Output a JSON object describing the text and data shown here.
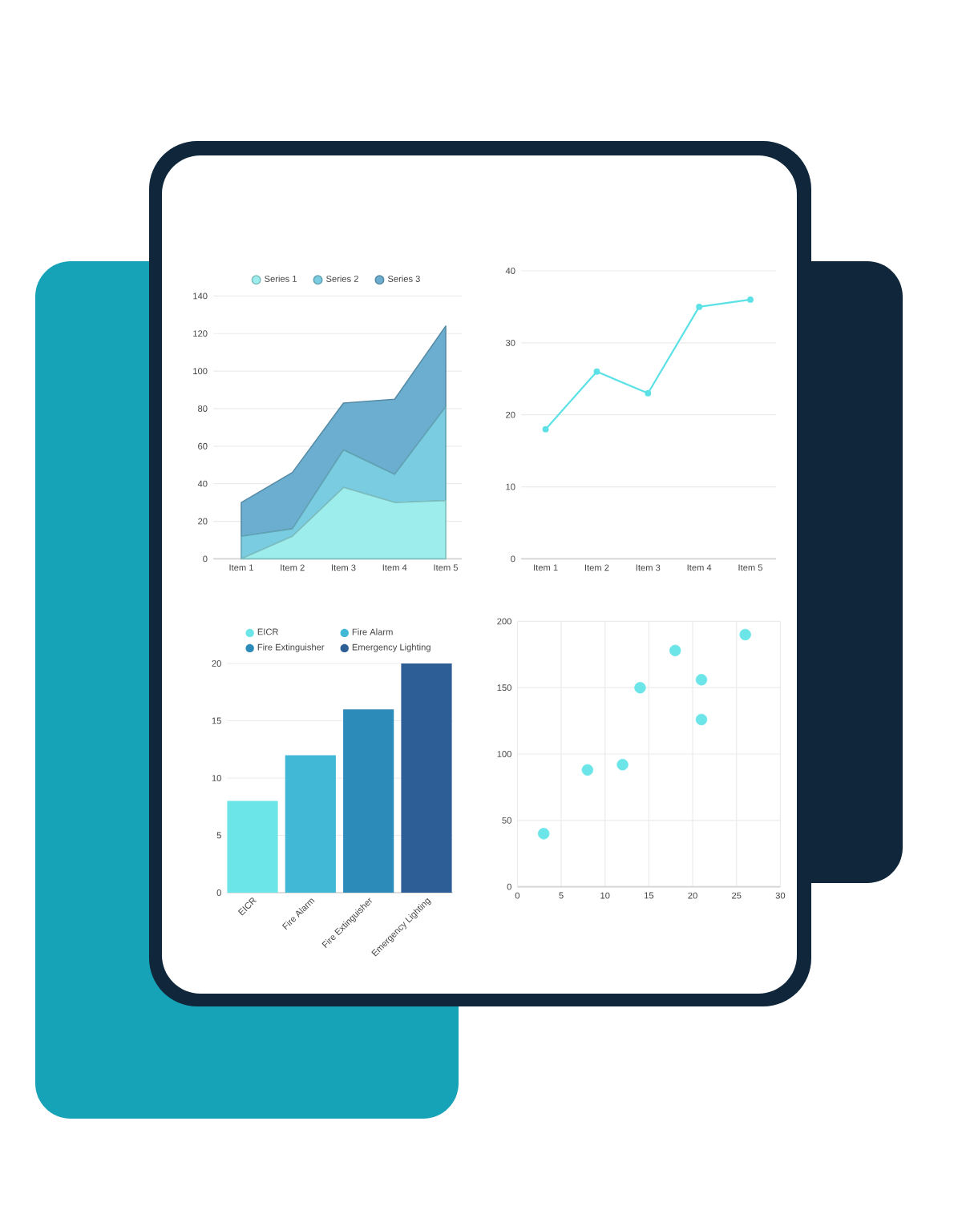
{
  "chart_data": [
    {
      "type": "area",
      "stacked": true,
      "categories": [
        "Item 1",
        "Item 2",
        "Item 3",
        "Item 4",
        "Item 5"
      ],
      "series": [
        {
          "name": "Series 1",
          "color": "#9eeded",
          "values": [
            0,
            12,
            38,
            30,
            31
          ]
        },
        {
          "name": "Series 2",
          "color": "#7acde1",
          "values": [
            12,
            4,
            20,
            15,
            50
          ]
        },
        {
          "name": "Series 3",
          "color": "#6caed0",
          "values": [
            18,
            30,
            25,
            40,
            43
          ]
        }
      ],
      "ylim": [
        0,
        140
      ],
      "yticks": [
        0,
        20,
        40,
        60,
        80,
        100,
        120,
        140
      ],
      "grid": "y",
      "legend": "top"
    },
    {
      "type": "line",
      "categories": [
        "Item 1",
        "Item 2",
        "Item 3",
        "Item 4",
        "Item 5"
      ],
      "values": [
        18,
        26,
        23,
        35,
        36
      ],
      "color": "#5ce1e6",
      "ylim": [
        0,
        40
      ],
      "yticks": [
        0,
        10,
        20,
        30,
        40
      ],
      "grid": "y",
      "marker": "circle"
    },
    {
      "type": "bar",
      "categories": [
        "EICR",
        "Fire Alarm",
        "Fire Extinguisher",
        "Emergency Lighting"
      ],
      "series": [
        {
          "name": "EICR",
          "color": "#6ce5e8",
          "values": [
            8,
            null,
            null,
            null
          ]
        },
        {
          "name": "Fire Alarm",
          "color": "#41b8d5",
          "values": [
            null,
            12,
            null,
            null
          ]
        },
        {
          "name": "Fire Extinguisher",
          "color": "#2d8bba",
          "values": [
            null,
            null,
            16,
            null
          ]
        },
        {
          "name": "Emergency Lighting",
          "color": "#2e5e96",
          "values": [
            null,
            null,
            null,
            20
          ]
        }
      ],
      "ylim": [
        0,
        20
      ],
      "yticks": [
        0,
        5,
        10,
        15,
        20
      ],
      "grid": "y",
      "legend": "top"
    },
    {
      "type": "scatter",
      "x": [
        3,
        8,
        12,
        14,
        18,
        21,
        21,
        26
      ],
      "values": [
        40,
        88,
        92,
        150,
        178,
        156,
        126,
        190
      ],
      "color": "#6ce5e8",
      "xlim": [
        0,
        30
      ],
      "xticks": [
        0,
        5,
        10,
        15,
        20,
        25,
        30
      ],
      "ylim": [
        0,
        200
      ],
      "yticks": [
        0,
        50,
        100,
        150,
        200
      ],
      "grid": true,
      "marker": "circle"
    }
  ]
}
